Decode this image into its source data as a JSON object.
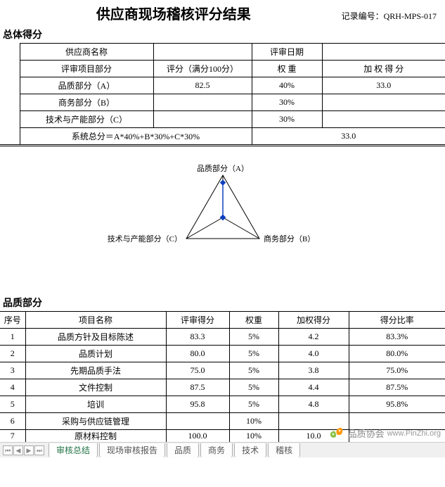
{
  "header": {
    "title": "供应商现场稽核评分结果",
    "record_label": "记录编号：",
    "record_no": "QRH-MPS-017"
  },
  "overall": {
    "section_title": "总体得分",
    "supplier_name_label": "供应商名称",
    "review_date_label": "评审日期",
    "project_label": "评审项目部分",
    "score_label": "评分（满分100分）",
    "weight_label": "权 重",
    "weighted_label": "加 权 得 分",
    "rows": [
      {
        "name": "品质部分（A）",
        "score": "82.5",
        "weight": "40%",
        "weighted": "33.0"
      },
      {
        "name": "商务部分（B）",
        "score": "",
        "weight": "30%",
        "weighted": ""
      },
      {
        "name": "技术与产能部分（C）",
        "score": "",
        "weight": "30%",
        "weighted": ""
      }
    ],
    "formula_label": "系统总分＝A*40%+B*30%+C*30%",
    "total": "33.0"
  },
  "radar": {
    "labels": {
      "top": "品质部分（A）",
      "right": "商务部分（B）",
      "left": "技术与产能部分（C）"
    },
    "values": [
      0.825,
      0.0,
      0.0
    ],
    "axis_color": "#000000",
    "line_color": "#1040c0",
    "marker_color": "#1040c0",
    "marker_size": 3,
    "font_size": 11
  },
  "quality": {
    "section_title": "品质部分",
    "headers": {
      "seq": "序号",
      "name": "项目名称",
      "score": "评审得分",
      "weight": "权重",
      "weighted": "加权得分",
      "ratio": "得分比率"
    },
    "rows": [
      {
        "seq": "1",
        "name": "品质方针及目标陈述",
        "score": "83.3",
        "weight": "5%",
        "weighted": "4.2",
        "ratio": "83.3%"
      },
      {
        "seq": "2",
        "name": "品质计划",
        "score": "80.0",
        "weight": "5%",
        "weighted": "4.0",
        "ratio": "80.0%"
      },
      {
        "seq": "3",
        "name": "先期品质手法",
        "score": "75.0",
        "weight": "5%",
        "weighted": "3.8",
        "ratio": "75.0%"
      },
      {
        "seq": "4",
        "name": "文件控制",
        "score": "87.5",
        "weight": "5%",
        "weighted": "4.4",
        "ratio": "87.5%"
      },
      {
        "seq": "5",
        "name": "培训",
        "score": "95.8",
        "weight": "5%",
        "weighted": "4.8",
        "ratio": "95.8%"
      },
      {
        "seq": "6",
        "name": "采购与供应链管理",
        "score": "",
        "weight": "10%",
        "weighted": "",
        "ratio": ""
      },
      {
        "seq": "7",
        "name": "原材料控制",
        "score": "100.0",
        "weight": "10%",
        "weighted": "10.0",
        "ratio": ""
      }
    ]
  },
  "tabs": {
    "items": [
      "审核总结",
      "现场审核报告",
      "品质",
      "商务",
      "技术",
      "稽核"
    ],
    "active_index": 0
  },
  "watermark": {
    "cn": "品质协会",
    "url": "www.PinZhi.org"
  }
}
